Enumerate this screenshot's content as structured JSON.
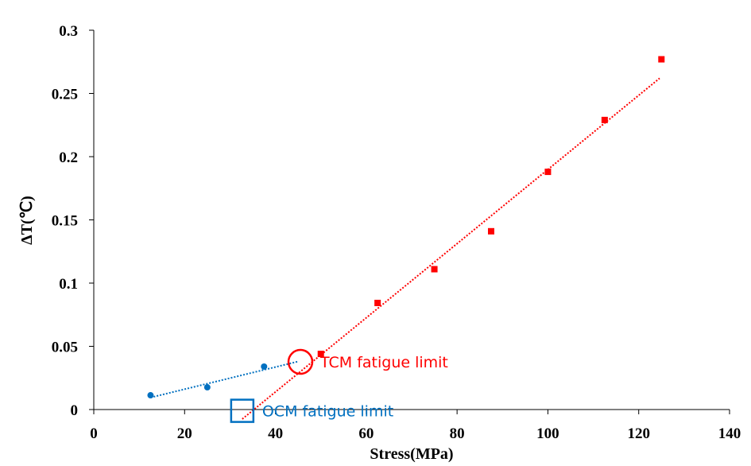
{
  "chart_data": {
    "type": "scatter",
    "x_label": "Stress(MPa)",
    "y_label": "ΔT(℃)",
    "xlim": [
      0,
      140
    ],
    "ylim": [
      0,
      0.3
    ],
    "xticks": [
      0,
      20,
      40,
      60,
      80,
      100,
      120,
      140
    ],
    "yticks": [
      0,
      0.05,
      0.1,
      0.15,
      0.2,
      0.25,
      0.3
    ],
    "grid": false,
    "series": [
      {
        "name": "OCM",
        "color": "#0070c0",
        "marker": "circle",
        "x": [
          12.5,
          25,
          37.5
        ],
        "values": [
          0.0113,
          0.0176,
          0.034
        ]
      },
      {
        "name": "TCM",
        "color": "#ff0000",
        "marker": "square",
        "x": [
          50,
          62.5,
          75,
          87.5,
          100,
          112.5,
          125
        ],
        "values": [
          0.044,
          0.0843,
          0.111,
          0.141,
          0.188,
          0.229,
          0.277
        ]
      }
    ],
    "trendlines": [
      {
        "color": "#0070c0",
        "x": [
          12.5,
          45
        ],
        "values": [
          0.0095,
          0.038
        ]
      },
      {
        "color": "#ff0000",
        "x": [
          32.7,
          124.6
        ],
        "values": [
          -0.0075,
          0.262
        ]
      }
    ],
    "annotations": [
      {
        "text": "TCM fatigue limit",
        "color": "#ff0000",
        "shape": "circle",
        "x": 45.5,
        "y": 0.0377
      },
      {
        "text": "OCM fatigue limit",
        "color": "#0070c0",
        "shape": "square",
        "x": 32.7,
        "y": -0.001
      }
    ]
  }
}
